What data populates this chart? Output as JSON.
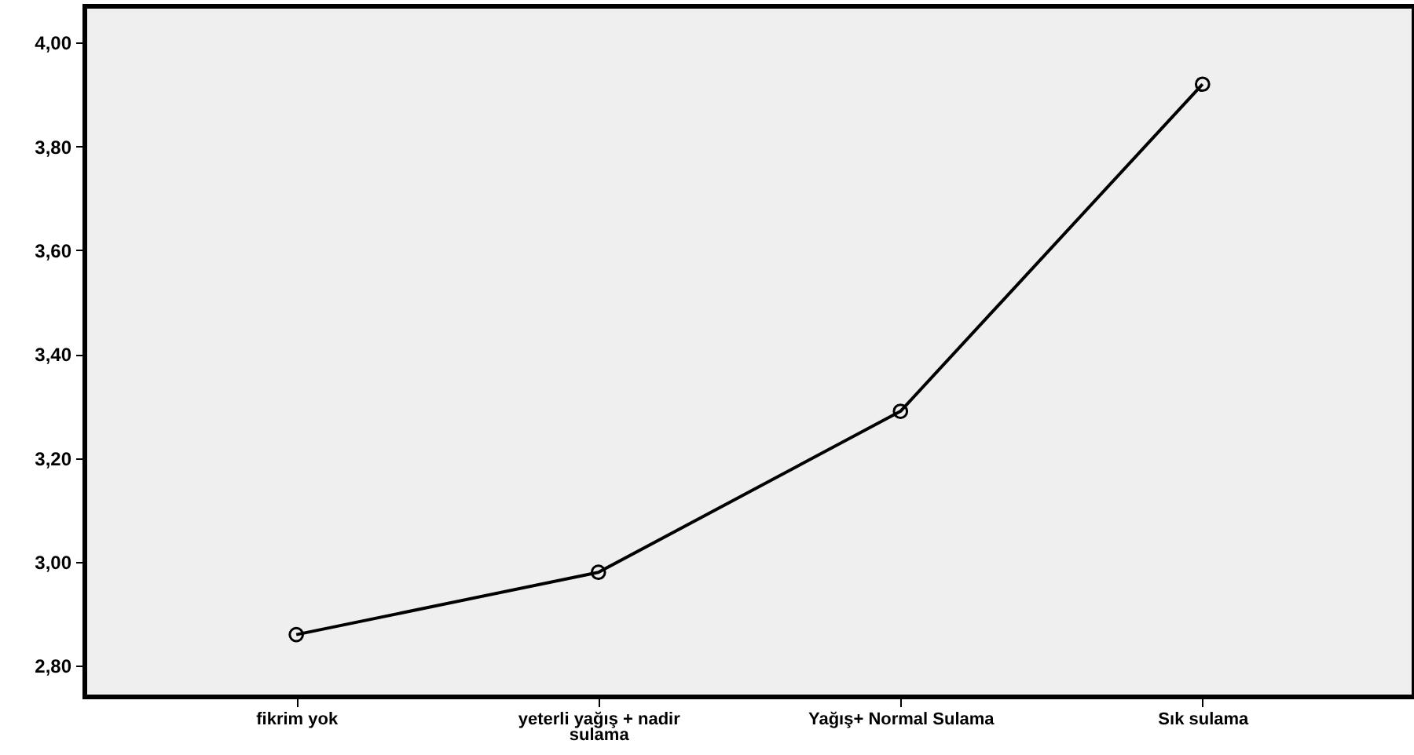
{
  "chart_data": {
    "type": "line",
    "categories": [
      "fikrim yok",
      "yeterli yağış + nadir sulama",
      "Yağış+ Normal Sulama",
      "Sık sulama"
    ],
    "values": [
      2.86,
      2.98,
      3.29,
      3.92
    ],
    "color": "#000000",
    "marker": "circle",
    "line_style": "solid",
    "grid": false,
    "ylim": [
      2.74,
      4.07
    ],
    "yticks": [
      {
        "value": 2.8,
        "label": "2,80"
      },
      {
        "value": 3.0,
        "label": "3,00"
      },
      {
        "value": 3.2,
        "label": "3,20"
      },
      {
        "value": 3.4,
        "label": "3,40"
      },
      {
        "value": 3.6,
        "label": "3,60"
      },
      {
        "value": 3.8,
        "label": "3,80"
      },
      {
        "value": 4.0,
        "label": "4,00"
      }
    ]
  }
}
